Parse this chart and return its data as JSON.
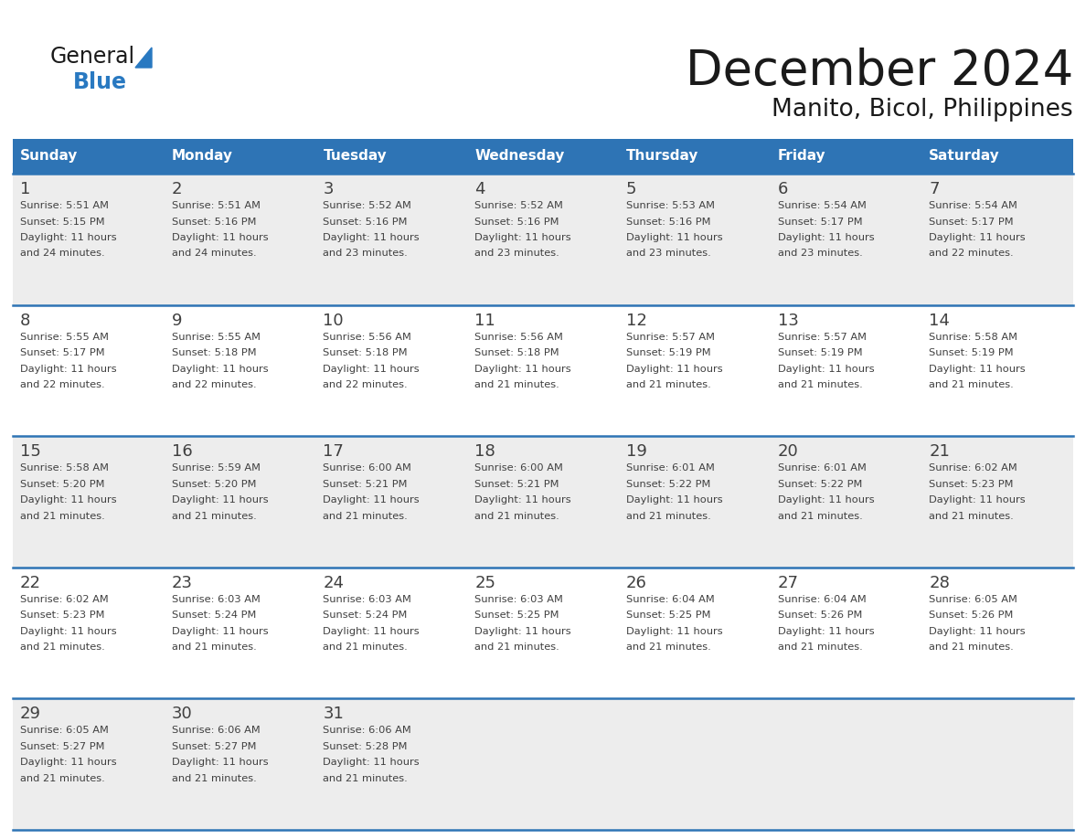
{
  "title": "December 2024",
  "subtitle": "Manito, Bicol, Philippines",
  "header_color": "#2E74B5",
  "header_text_color": "#FFFFFF",
  "day_names": [
    "Sunday",
    "Monday",
    "Tuesday",
    "Wednesday",
    "Thursday",
    "Friday",
    "Saturday"
  ],
  "background_color": "#FFFFFF",
  "cell_bg_even": "#EDEDED",
  "cell_bg_odd": "#FFFFFF",
  "grid_color": "#2E74B5",
  "date_color": "#404040",
  "text_color": "#404040",
  "logo_general_color": "#1A1A1A",
  "logo_blue_color": "#2979C1",
  "title_color": "#1A1A1A",
  "days": [
    {
      "day": 1,
      "col": 0,
      "row": 0,
      "sunrise": "5:51 AM",
      "sunset": "5:15 PM",
      "daylight": "11 hours and 24 minutes."
    },
    {
      "day": 2,
      "col": 1,
      "row": 0,
      "sunrise": "5:51 AM",
      "sunset": "5:16 PM",
      "daylight": "11 hours and 24 minutes."
    },
    {
      "day": 3,
      "col": 2,
      "row": 0,
      "sunrise": "5:52 AM",
      "sunset": "5:16 PM",
      "daylight": "11 hours and 23 minutes."
    },
    {
      "day": 4,
      "col": 3,
      "row": 0,
      "sunrise": "5:52 AM",
      "sunset": "5:16 PM",
      "daylight": "11 hours and 23 minutes."
    },
    {
      "day": 5,
      "col": 4,
      "row": 0,
      "sunrise": "5:53 AM",
      "sunset": "5:16 PM",
      "daylight": "11 hours and 23 minutes."
    },
    {
      "day": 6,
      "col": 5,
      "row": 0,
      "sunrise": "5:54 AM",
      "sunset": "5:17 PM",
      "daylight": "11 hours and 23 minutes."
    },
    {
      "day": 7,
      "col": 6,
      "row": 0,
      "sunrise": "5:54 AM",
      "sunset": "5:17 PM",
      "daylight": "11 hours and 22 minutes."
    },
    {
      "day": 8,
      "col": 0,
      "row": 1,
      "sunrise": "5:55 AM",
      "sunset": "5:17 PM",
      "daylight": "11 hours and 22 minutes."
    },
    {
      "day": 9,
      "col": 1,
      "row": 1,
      "sunrise": "5:55 AM",
      "sunset": "5:18 PM",
      "daylight": "11 hours and 22 minutes."
    },
    {
      "day": 10,
      "col": 2,
      "row": 1,
      "sunrise": "5:56 AM",
      "sunset": "5:18 PM",
      "daylight": "11 hours and 22 minutes."
    },
    {
      "day": 11,
      "col": 3,
      "row": 1,
      "sunrise": "5:56 AM",
      "sunset": "5:18 PM",
      "daylight": "11 hours and 21 minutes."
    },
    {
      "day": 12,
      "col": 4,
      "row": 1,
      "sunrise": "5:57 AM",
      "sunset": "5:19 PM",
      "daylight": "11 hours and 21 minutes."
    },
    {
      "day": 13,
      "col": 5,
      "row": 1,
      "sunrise": "5:57 AM",
      "sunset": "5:19 PM",
      "daylight": "11 hours and 21 minutes."
    },
    {
      "day": 14,
      "col": 6,
      "row": 1,
      "sunrise": "5:58 AM",
      "sunset": "5:19 PM",
      "daylight": "11 hours and 21 minutes."
    },
    {
      "day": 15,
      "col": 0,
      "row": 2,
      "sunrise": "5:58 AM",
      "sunset": "5:20 PM",
      "daylight": "11 hours and 21 minutes."
    },
    {
      "day": 16,
      "col": 1,
      "row": 2,
      "sunrise": "5:59 AM",
      "sunset": "5:20 PM",
      "daylight": "11 hours and 21 minutes."
    },
    {
      "day": 17,
      "col": 2,
      "row": 2,
      "sunrise": "6:00 AM",
      "sunset": "5:21 PM",
      "daylight": "11 hours and 21 minutes."
    },
    {
      "day": 18,
      "col": 3,
      "row": 2,
      "sunrise": "6:00 AM",
      "sunset": "5:21 PM",
      "daylight": "11 hours and 21 minutes."
    },
    {
      "day": 19,
      "col": 4,
      "row": 2,
      "sunrise": "6:01 AM",
      "sunset": "5:22 PM",
      "daylight": "11 hours and 21 minutes."
    },
    {
      "day": 20,
      "col": 5,
      "row": 2,
      "sunrise": "6:01 AM",
      "sunset": "5:22 PM",
      "daylight": "11 hours and 21 minutes."
    },
    {
      "day": 21,
      "col": 6,
      "row": 2,
      "sunrise": "6:02 AM",
      "sunset": "5:23 PM",
      "daylight": "11 hours and 21 minutes."
    },
    {
      "day": 22,
      "col": 0,
      "row": 3,
      "sunrise": "6:02 AM",
      "sunset": "5:23 PM",
      "daylight": "11 hours and 21 minutes."
    },
    {
      "day": 23,
      "col": 1,
      "row": 3,
      "sunrise": "6:03 AM",
      "sunset": "5:24 PM",
      "daylight": "11 hours and 21 minutes."
    },
    {
      "day": 24,
      "col": 2,
      "row": 3,
      "sunrise": "6:03 AM",
      "sunset": "5:24 PM",
      "daylight": "11 hours and 21 minutes."
    },
    {
      "day": 25,
      "col": 3,
      "row": 3,
      "sunrise": "6:03 AM",
      "sunset": "5:25 PM",
      "daylight": "11 hours and 21 minutes."
    },
    {
      "day": 26,
      "col": 4,
      "row": 3,
      "sunrise": "6:04 AM",
      "sunset": "5:25 PM",
      "daylight": "11 hours and 21 minutes."
    },
    {
      "day": 27,
      "col": 5,
      "row": 3,
      "sunrise": "6:04 AM",
      "sunset": "5:26 PM",
      "daylight": "11 hours and 21 minutes."
    },
    {
      "day": 28,
      "col": 6,
      "row": 3,
      "sunrise": "6:05 AM",
      "sunset": "5:26 PM",
      "daylight": "11 hours and 21 minutes."
    },
    {
      "day": 29,
      "col": 0,
      "row": 4,
      "sunrise": "6:05 AM",
      "sunset": "5:27 PM",
      "daylight": "11 hours and 21 minutes."
    },
    {
      "day": 30,
      "col": 1,
      "row": 4,
      "sunrise": "6:06 AM",
      "sunset": "5:27 PM",
      "daylight": "11 hours and 21 minutes."
    },
    {
      "day": 31,
      "col": 2,
      "row": 4,
      "sunrise": "6:06 AM",
      "sunset": "5:28 PM",
      "daylight": "11 hours and 21 minutes."
    }
  ]
}
